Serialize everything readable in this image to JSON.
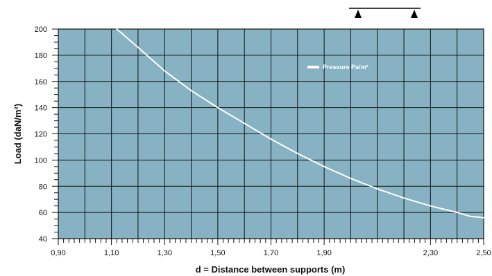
{
  "chart_data": {
    "type": "line",
    "xlabel": "d = Distance between supports (m)",
    "ylabel": "Load (daN/m²)",
    "xlim": [
      0.9,
      2.5
    ],
    "ylim": [
      40,
      200
    ],
    "x_major_ticks": [
      0.9,
      1.1,
      1.3,
      1.5,
      1.7,
      1.9,
      2.3,
      2.5
    ],
    "x_tick_labels": [
      "0,90",
      "1,10",
      "1,30",
      "1,50",
      "1,70",
      "1,90",
      "2,30",
      "2,50"
    ],
    "x_grid_step": 0.1,
    "x_minor_step": 0.02,
    "y_major_ticks": [
      40,
      60,
      80,
      100,
      120,
      140,
      160,
      180,
      200
    ],
    "y_tick_labels": [
      "40",
      "60",
      "80",
      "100",
      "120",
      "140",
      "160",
      "180",
      "200"
    ],
    "y_minor_step": 5,
    "grid": true,
    "legend_position": "top-right",
    "series": [
      {
        "name": "Pressure Pa/m²",
        "x": [
          1.12,
          1.2,
          1.3,
          1.4,
          1.5,
          1.6,
          1.7,
          1.8,
          1.9,
          2.0,
          2.1,
          2.2,
          2.3,
          2.4,
          2.45,
          2.5
        ],
        "y": [
          200,
          186,
          168,
          153,
          140,
          128,
          116,
          105,
          95,
          86,
          78,
          71,
          65,
          60,
          57,
          56
        ]
      }
    ]
  },
  "colors": {
    "plot_background": "#86b2c3",
    "grid": "#111111",
    "series_line": "#ffffff"
  },
  "support_icon": "beam-with-two-supports-icon"
}
